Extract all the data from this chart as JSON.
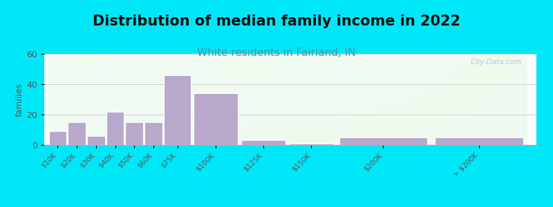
{
  "title": "Distribution of median family income in 2022",
  "subtitle": "White residents in Fairland, IN",
  "categories": [
    "$10K",
    "$20K",
    "$30K",
    "$40K",
    "$50K",
    "$60K",
    "$75K",
    "$100K",
    "$125K",
    "$150K",
    "$200K",
    "> $200K"
  ],
  "values": [
    9,
    15,
    6,
    22,
    15,
    15,
    46,
    34,
    3,
    1,
    5,
    5
  ],
  "bar_color": "#b8a8cc",
  "bar_edge_color": "#ffffff",
  "ylabel": "families",
  "ylim": [
    0,
    60
  ],
  "yticks": [
    0,
    20,
    40,
    60
  ],
  "background_outer": "#00e8f8",
  "title_fontsize": 15,
  "subtitle_fontsize": 11,
  "subtitle_color": "#4499aa",
  "title_color": "#111111",
  "watermark": "City-Data.com",
  "grid_color": "#cccccc",
  "tick_color": "#555555",
  "left_edges": [
    0,
    10,
    20,
    30,
    40,
    50,
    60,
    75,
    100,
    125,
    150,
    200
  ],
  "right_edges": [
    10,
    20,
    30,
    40,
    50,
    60,
    75,
    100,
    125,
    150,
    200,
    250
  ]
}
